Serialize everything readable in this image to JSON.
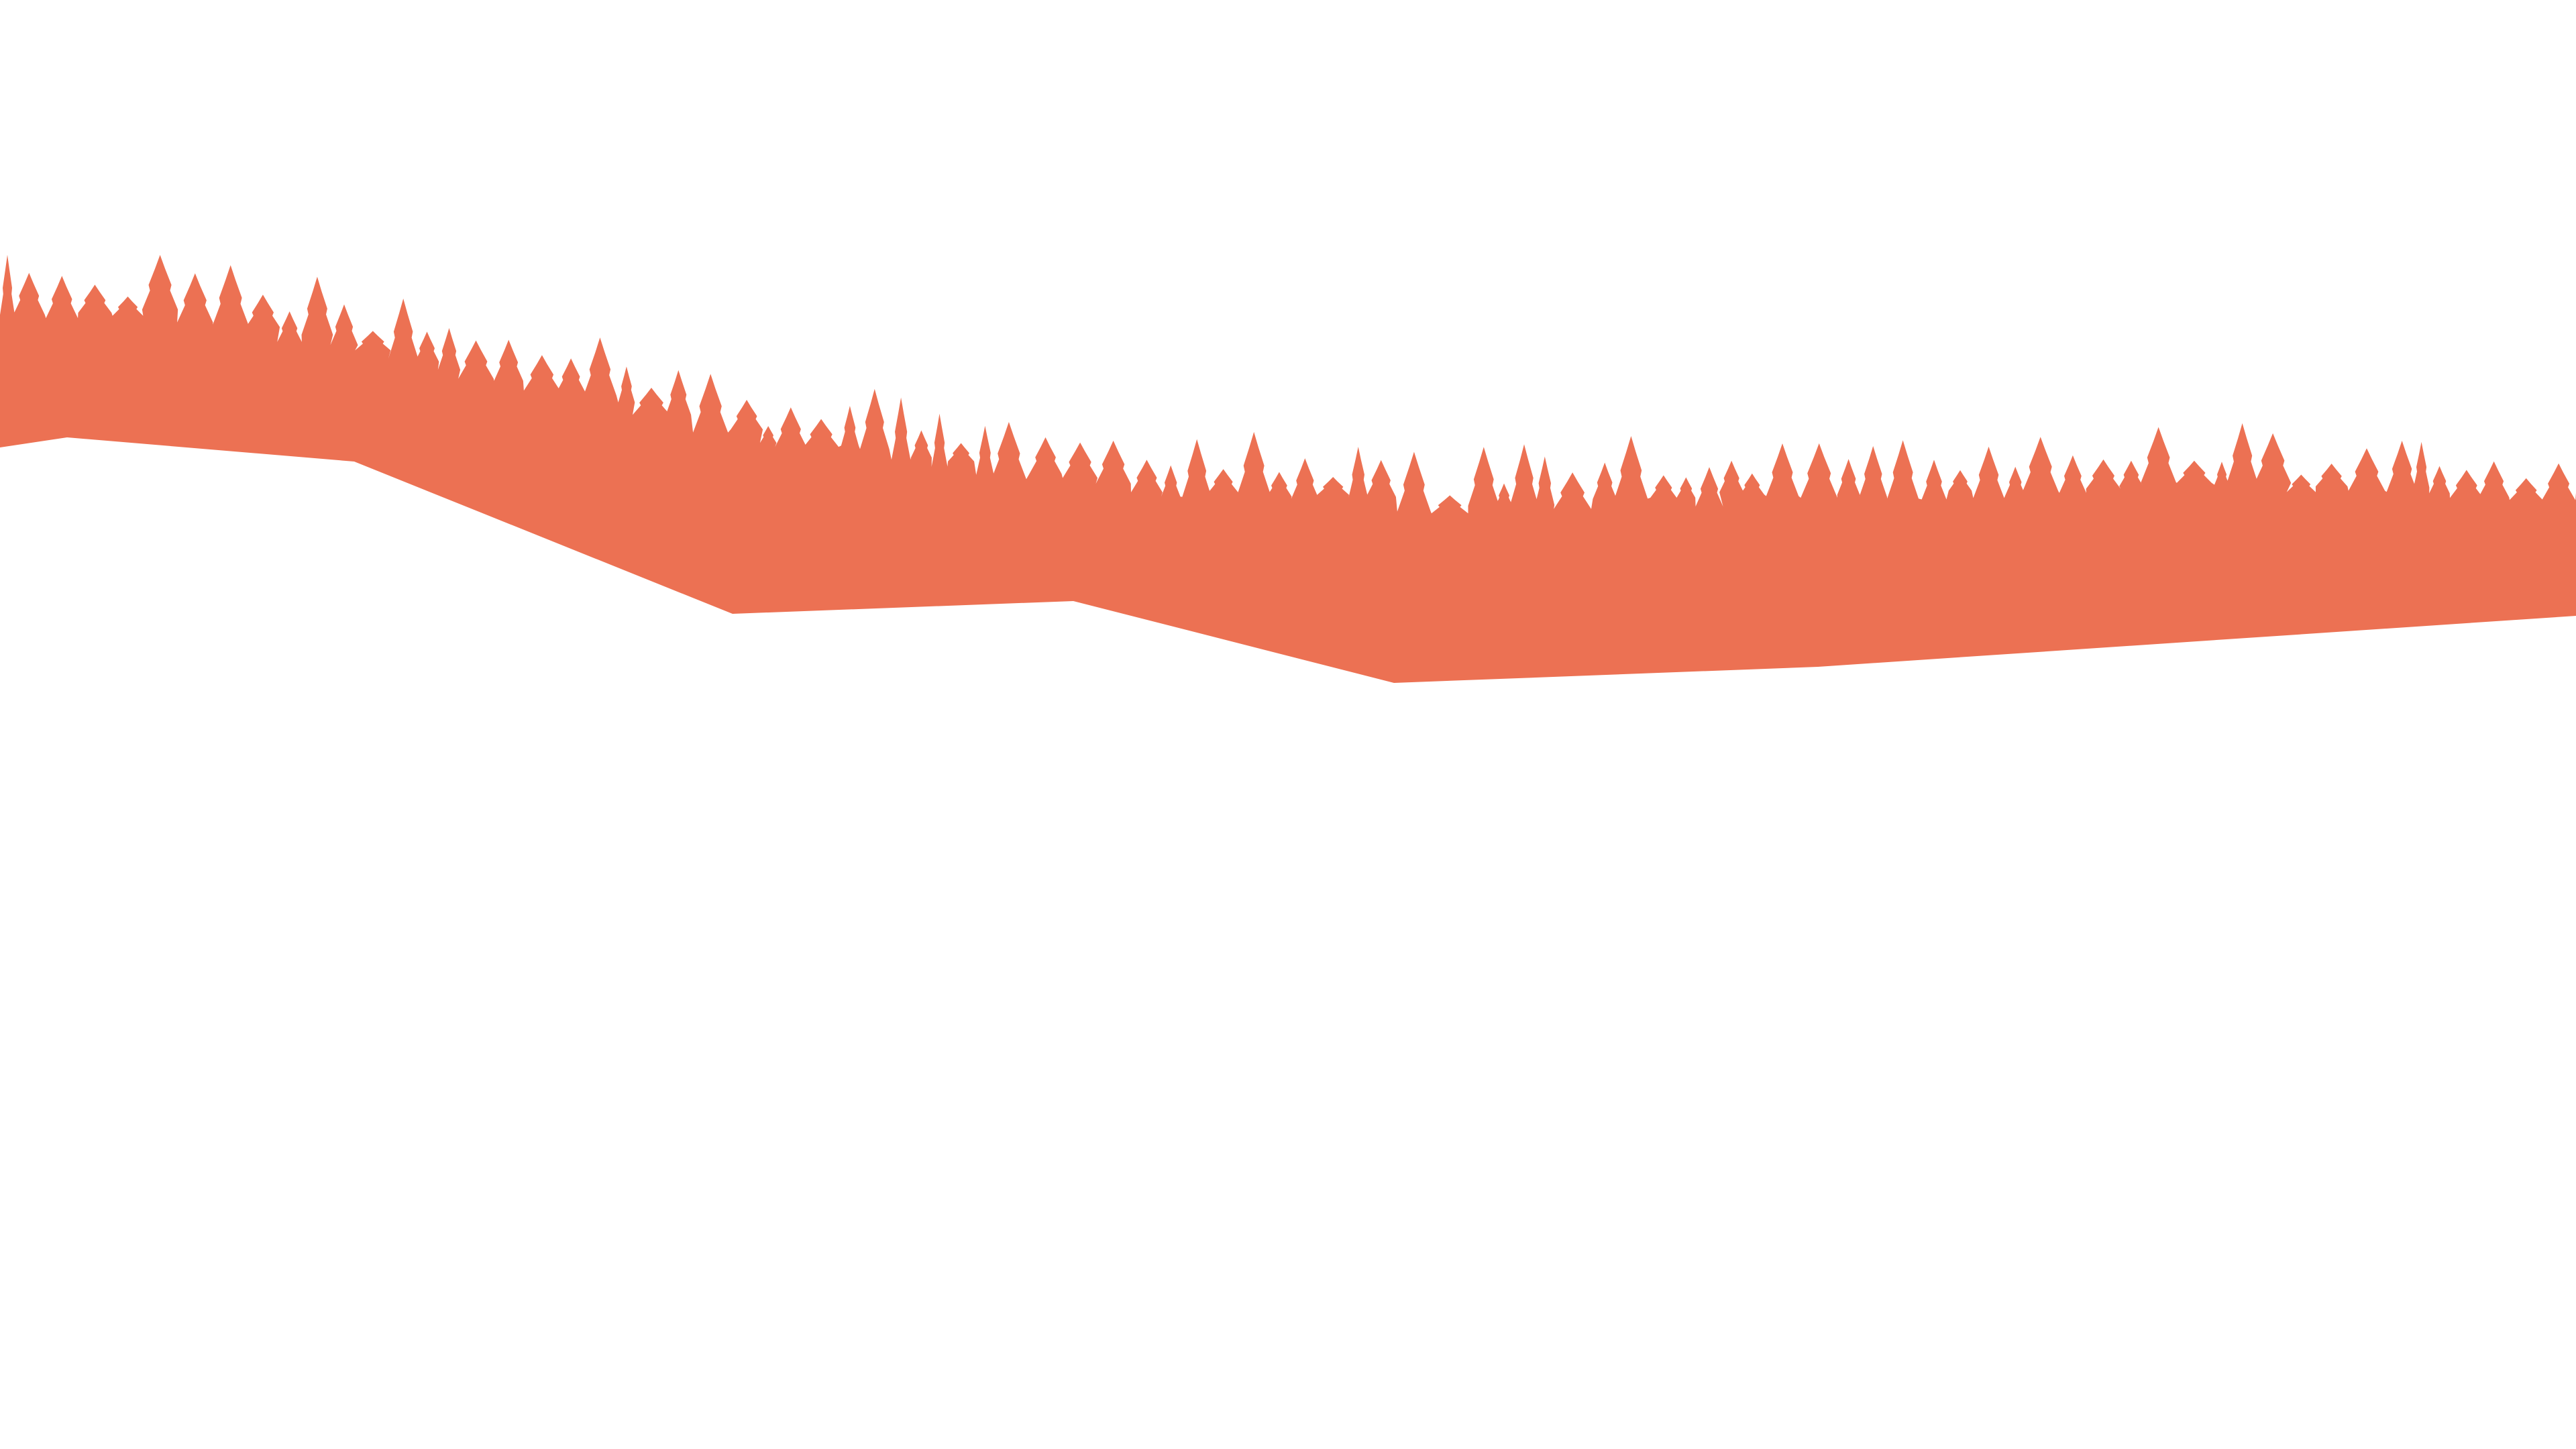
{
  "scene": {
    "background_color": "#ffffff",
    "forest_color": "#EC7153",
    "shape": "forest-silhouette-band"
  }
}
